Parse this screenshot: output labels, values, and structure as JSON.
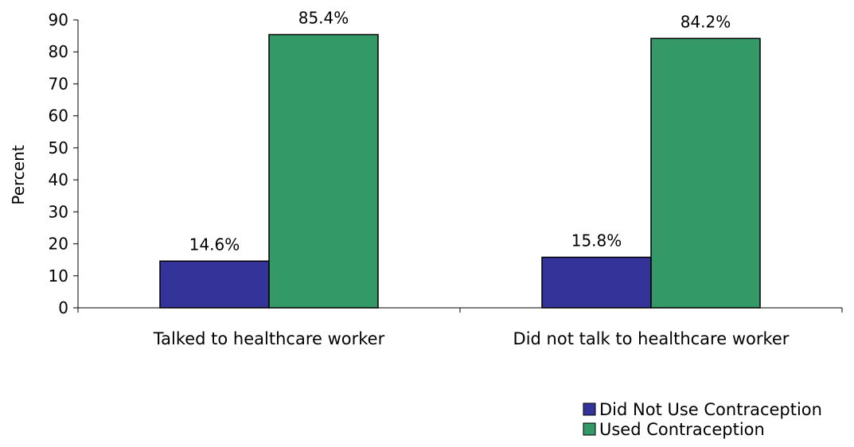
{
  "chart_data": {
    "type": "bar",
    "categories": [
      "Talked to healthcare worker",
      "Did not talk to healthcare worker"
    ],
    "series": [
      {
        "name": "Did Not Use Contraception",
        "values": [
          14.6,
          15.8
        ],
        "labels": [
          "14.6%",
          "15.8%"
        ],
        "color": "#333399"
      },
      {
        "name": "Used Contraception",
        "values": [
          85.4,
          84.2
        ],
        "labels": [
          "85.4%",
          "84.2%"
        ],
        "color": "#339966"
      }
    ],
    "title": "",
    "xlabel": "",
    "ylabel": "Percent",
    "ylim": [
      0,
      90
    ],
    "yticks": [
      0,
      10,
      20,
      30,
      40,
      50,
      60,
      70,
      80,
      90
    ],
    "grid": false,
    "legend_position": "bottom-right"
  }
}
